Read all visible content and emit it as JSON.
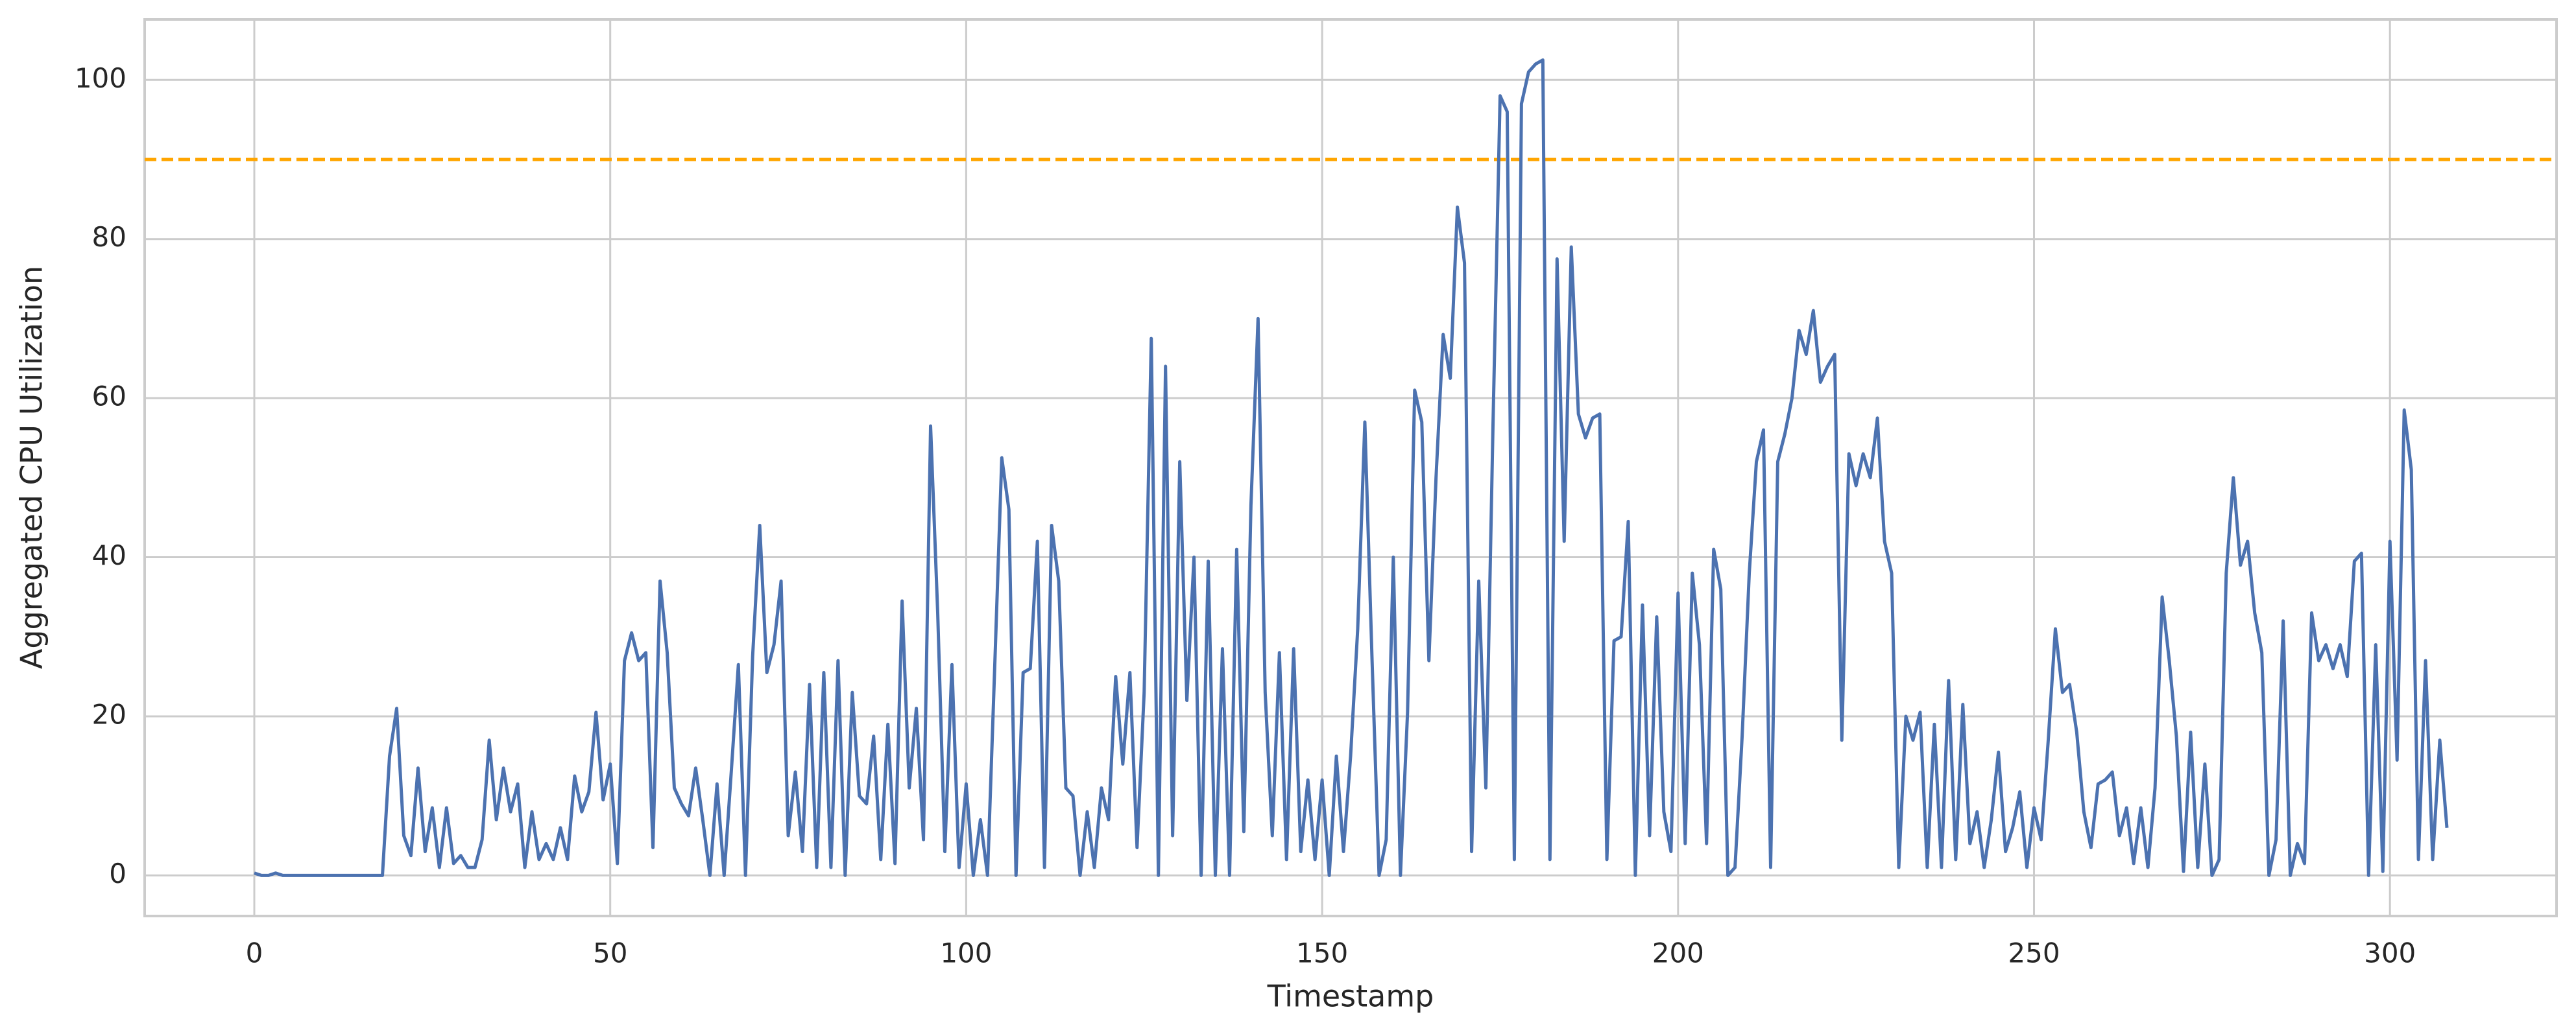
{
  "chart_data": {
    "type": "line",
    "xlabel": "Timestamp",
    "ylabel": "Aggregated CPU Utilization",
    "x": [
      0,
      1,
      2,
      3,
      4,
      5,
      6,
      7,
      8,
      9,
      10,
      11,
      12,
      13,
      14,
      15,
      16,
      17,
      18,
      19,
      20,
      21,
      22,
      23,
      24,
      25,
      26,
      27,
      28,
      29,
      30,
      31,
      32,
      33,
      34,
      35,
      36,
      37,
      38,
      39,
      40,
      41,
      42,
      43,
      44,
      45,
      46,
      47,
      48,
      49,
      50,
      51,
      52,
      53,
      54,
      55,
      56,
      57,
      58,
      59,
      60,
      61,
      62,
      63,
      64,
      65,
      66,
      67,
      68,
      69,
      70,
      71,
      72,
      73,
      74,
      75,
      76,
      77,
      78,
      79,
      80,
      81,
      82,
      83,
      84,
      85,
      86,
      87,
      88,
      89,
      90,
      91,
      92,
      93,
      94,
      95,
      96,
      97,
      98,
      99,
      100,
      101,
      102,
      103,
      104,
      105,
      106,
      107,
      108,
      109,
      110,
      111,
      112,
      113,
      114,
      115,
      116,
      117,
      118,
      119,
      120,
      121,
      122,
      123,
      124,
      125,
      126,
      127,
      128,
      129,
      130,
      131,
      132,
      133,
      134,
      135,
      136,
      137,
      138,
      139,
      140,
      141,
      142,
      143,
      144,
      145,
      146,
      147,
      148,
      149,
      150,
      151,
      152,
      153,
      154,
      155,
      156,
      157,
      158,
      159,
      160,
      161,
      162,
      163,
      164,
      165,
      166,
      167,
      168,
      169,
      170,
      171,
      172,
      173,
      174,
      175,
      176,
      177,
      178,
      179,
      180,
      181,
      182,
      183,
      184,
      185,
      186,
      187,
      188,
      189,
      190,
      191,
      192,
      193,
      194,
      195,
      196,
      197,
      198,
      199,
      200,
      201,
      202,
      203,
      204,
      205,
      206,
      207,
      208,
      209,
      210,
      211,
      212,
      213,
      214,
      215,
      216,
      217,
      218,
      219,
      220,
      221,
      222,
      223,
      224,
      225,
      226,
      227,
      228,
      229,
      230,
      231,
      232,
      233,
      234,
      235,
      236,
      237,
      238,
      239,
      240,
      241,
      242,
      243,
      244,
      245,
      246,
      247,
      248,
      249,
      250,
      251,
      252,
      253,
      254,
      255,
      256,
      257,
      258,
      259,
      260,
      261,
      262,
      263,
      264,
      265,
      266,
      267,
      268,
      269,
      270,
      271,
      272,
      273,
      274,
      275,
      276,
      277,
      278,
      279,
      280,
      281,
      282,
      283,
      284,
      285,
      286,
      287,
      288,
      289,
      290,
      291,
      292,
      293,
      294,
      295,
      296,
      297,
      298,
      299,
      300,
      301,
      302,
      303,
      304,
      305,
      306,
      307,
      308
    ],
    "series": [
      {
        "name": "Aggregated CPU Utilization",
        "color": "#4c72b0",
        "values": [
          0.3,
          0,
          0,
          0.3,
          0,
          0,
          0,
          0,
          0,
          0,
          0,
          0,
          0,
          0,
          0,
          0,
          0,
          0,
          0,
          15,
          21,
          5,
          2.5,
          13.5,
          3,
          8.5,
          1,
          8.5,
          1.5,
          2.5,
          1,
          1,
          4.5,
          17,
          7,
          13.5,
          8,
          11.5,
          1,
          8,
          2,
          4,
          2,
          6,
          2,
          12.5,
          8,
          10.5,
          20.5,
          9.5,
          14,
          1.5,
          27,
          30.5,
          27,
          28,
          3.5,
          37,
          28,
          11,
          9,
          7.5,
          13.5,
          7,
          0,
          11.5,
          0,
          13,
          26.5,
          0,
          27.5,
          44,
          25.5,
          29,
          37,
          5,
          13,
          3,
          24,
          1,
          25.5,
          1,
          27,
          0,
          23,
          10,
          9,
          17.5,
          2,
          19,
          1.5,
          34.5,
          11,
          21,
          4.5,
          56.5,
          33,
          3,
          26.5,
          1,
          11.5,
          0,
          7,
          0,
          26,
          52.5,
          46,
          0,
          25.5,
          26,
          42,
          1,
          44,
          37,
          11,
          10,
          0,
          8,
          1,
          11,
          7,
          25,
          14,
          25.5,
          3.5,
          23,
          67.5,
          0,
          64,
          5,
          52,
          22,
          40,
          0,
          39.5,
          0,
          28.5,
          0,
          41,
          5.5,
          46.5,
          70,
          23,
          5,
          28,
          2,
          28.5,
          3,
          12,
          2,
          12,
          0,
          15,
          3,
          15,
          31,
          57,
          27.5,
          0,
          4.5,
          40,
          0,
          20.5,
          61,
          57,
          27,
          50,
          68,
          62.5,
          84,
          77,
          3,
          37,
          11,
          56.5,
          98,
          96,
          2,
          97,
          101,
          102,
          102.5,
          2,
          77.5,
          42,
          79,
          58,
          55,
          57.5,
          58,
          2,
          29.5,
          30,
          44.5,
          0,
          34,
          5,
          32.5,
          8,
          3,
          35.5,
          4,
          38,
          29,
          4,
          41,
          36,
          0,
          1,
          17.5,
          38,
          52,
          56,
          1,
          52,
          55.5,
          60,
          68.5,
          65.5,
          71,
          62,
          64,
          65.5,
          17,
          53,
          49,
          53,
          50,
          57.5,
          42,
          38,
          1,
          20,
          17,
          20.5,
          1,
          19,
          1,
          24.5,
          2,
          21.5,
          4,
          8,
          1,
          7,
          15.5,
          3,
          6,
          10.5,
          1,
          8.5,
          4.5,
          17,
          31,
          23,
          24,
          18,
          8,
          3.5,
          11.5,
          12,
          13,
          5,
          8.5,
          1.5,
          8.5,
          1,
          11,
          35,
          27,
          17.5,
          0.5,
          18,
          1,
          14,
          0,
          2,
          38,
          50,
          39,
          42,
          33,
          28,
          0,
          4.5,
          32,
          0,
          4,
          1.5,
          33,
          27,
          29,
          26,
          29,
          25,
          39.5,
          40.5,
          0,
          29,
          0.5,
          42,
          14.5,
          58.5,
          51,
          2,
          27,
          2,
          17,
          6
        ]
      }
    ],
    "hlines": [
      {
        "value": 90,
        "color": "#ffa500"
      }
    ],
    "xlim": [
      -15.4,
      323.4
    ],
    "ylim": [
      -5.1,
      107.6
    ],
    "xticks": [
      0,
      50,
      100,
      150,
      200,
      250,
      300
    ],
    "yticks": [
      0,
      20,
      40,
      60,
      80,
      100
    ],
    "grid": true
  }
}
